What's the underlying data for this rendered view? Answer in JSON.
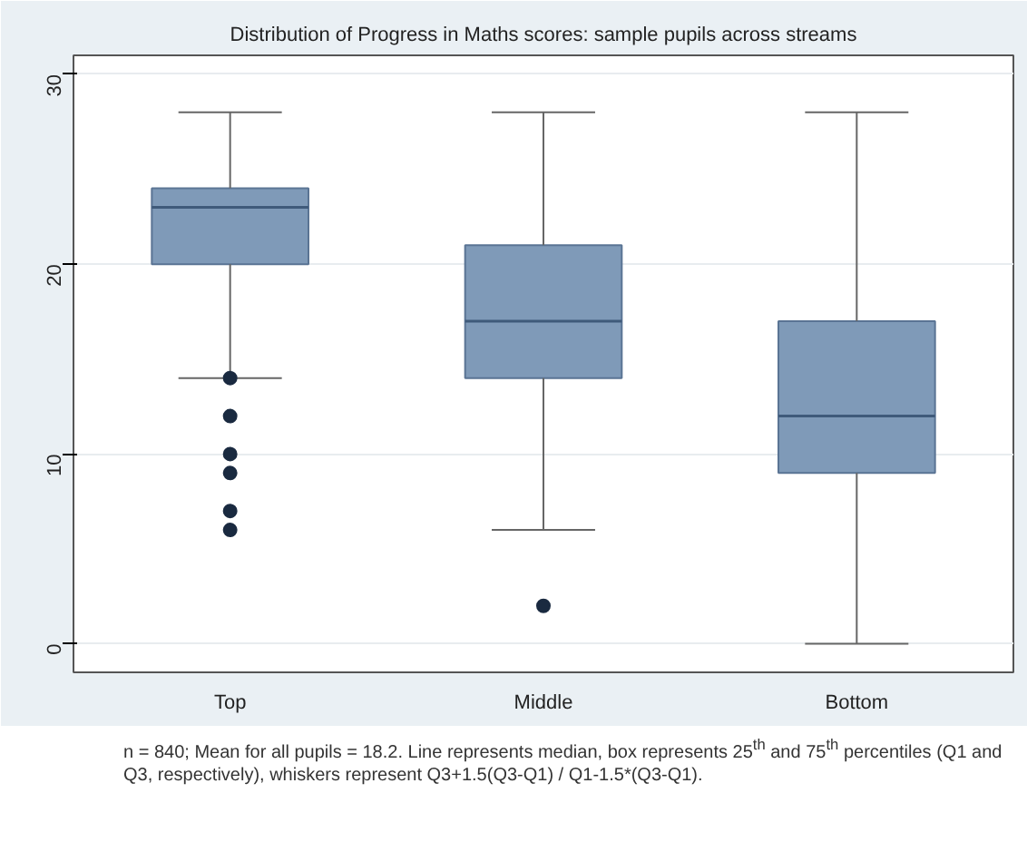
{
  "chart_data": {
    "type": "box",
    "title": "Distribution of Progress in Maths scores: sample pupils across streams",
    "categories": [
      "Top",
      "Middle",
      "Bottom"
    ],
    "boxes": [
      {
        "low": 14,
        "q1": 20,
        "median": 23,
        "q3": 24,
        "high": 28,
        "outliers": [
          14,
          12,
          10,
          9,
          7,
          6
        ]
      },
      {
        "low": 6,
        "q1": 14,
        "median": 17,
        "q3": 21,
        "high": 28,
        "outliers": [
          2
        ]
      },
      {
        "low": 0,
        "q1": 9,
        "median": 12,
        "q3": 17,
        "high": 28
      }
    ],
    "color": "#7f9ab8",
    "ylim": [
      -1.5,
      31
    ],
    "yticks": [
      0,
      10,
      20,
      30
    ],
    "grid": "y",
    "annotations": [
      "n = 840; Mean for all pupils = 18.2. Line represents median, box represents 25$^{th}$ and 75$^{th}$ percentiles (Q1 and Q3, respectively), whiskers represent Q3+1.5(Q3-Q1) / Q1-1.5*(Q3-Q1)."
    ]
  }
}
